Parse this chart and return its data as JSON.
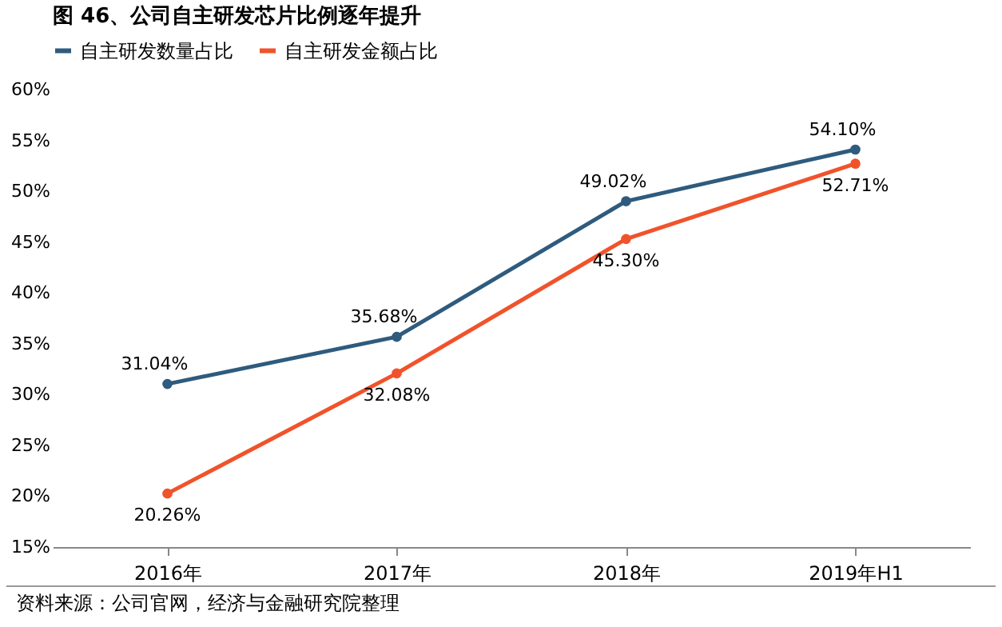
{
  "chart_data": {
    "type": "line",
    "title": "图 46、公司自主研发芯片比例逐年提升",
    "categories": [
      "2016年",
      "2017年",
      "2018年",
      "2019年H1"
    ],
    "series": [
      {
        "name": "自主研发数量占比",
        "color": "#2e5b7e",
        "values": [
          31.04,
          35.68,
          49.02,
          54.1
        ],
        "value_labels": [
          "31.04%",
          "35.68%",
          "49.02%",
          "54.10%"
        ]
      },
      {
        "name": "自主研发金额占比",
        "color": "#f0532b",
        "values": [
          20.26,
          32.08,
          45.3,
          52.71
        ],
        "value_labels": [
          "20.26%",
          "32.08%",
          "45.30%",
          "52.71%"
        ]
      }
    ],
    "ylim": [
      15,
      60
    ],
    "yticks": [
      {
        "value": 15,
        "label": "15%"
      },
      {
        "value": 20,
        "label": "20%"
      },
      {
        "value": 25,
        "label": "25%"
      },
      {
        "value": 30,
        "label": "30%"
      },
      {
        "value": 35,
        "label": "35%"
      },
      {
        "value": 40,
        "label": "40%"
      },
      {
        "value": 45,
        "label": "45%"
      },
      {
        "value": 50,
        "label": "50%"
      },
      {
        "value": 55,
        "label": "55%"
      },
      {
        "value": 60,
        "label": "60%"
      }
    ],
    "grid": false,
    "legend": "top",
    "marker": "circle",
    "line_style": "solid",
    "annotations": [
      "资料来源：公司官网，经济与金融研究院整理"
    ]
  }
}
